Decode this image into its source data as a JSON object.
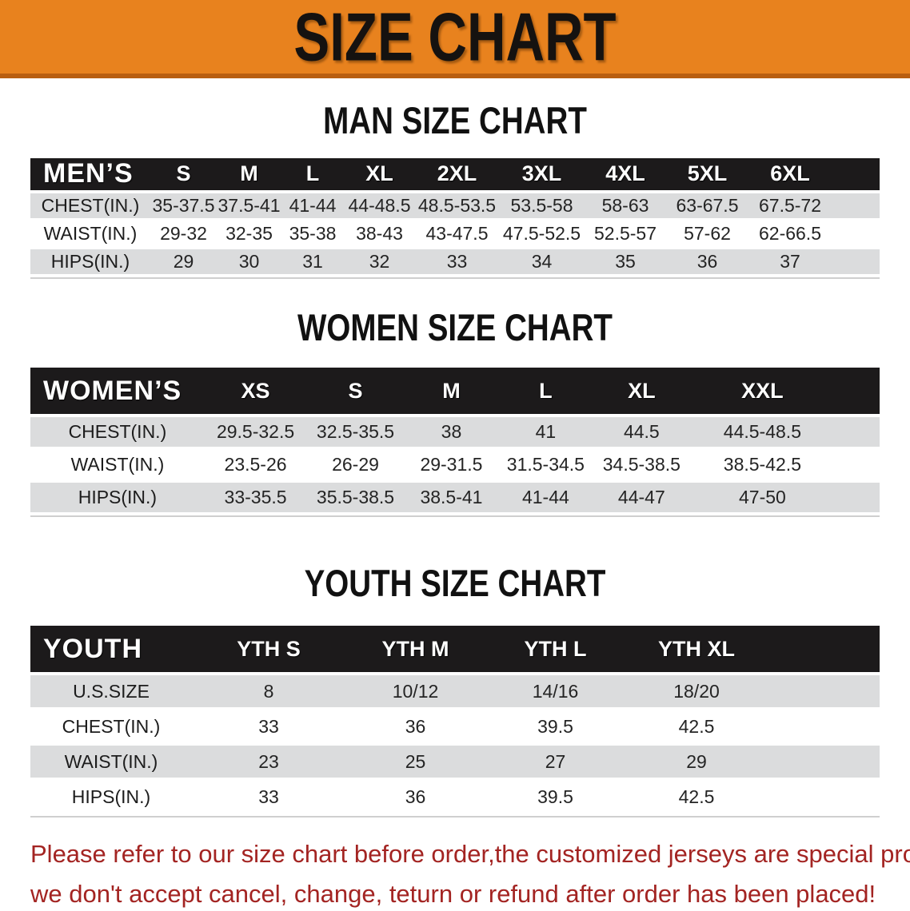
{
  "banner": {
    "title": "SIZE CHART"
  },
  "colors": {
    "banner_bg": "#E8821E",
    "banner_border": "#B95E10",
    "header_bar_bg": "#1C1A1B",
    "header_text": "#FFFFFF",
    "row_alt_bg": "#DBDCDD",
    "row_bg": "#FFFFFF",
    "body_text": "#242424",
    "disclaimer_text": "#A32422"
  },
  "sections": [
    {
      "id": "men",
      "title": "MAN SIZE CHART",
      "group_label": "MEN’S",
      "columns": [
        "S",
        "M",
        "L",
        "XL",
        "2XL",
        "3XL",
        "4XL",
        "5XL",
        "6XL"
      ],
      "rows": [
        {
          "label": "CHEST(IN.)",
          "values": [
            "35-37.5",
            "37.5-41",
            "41-44",
            "44-48.5",
            "48.5-53.5",
            "53.5-58",
            "58-63",
            "63-67.5",
            "67.5-72"
          ]
        },
        {
          "label": "WAIST(IN.)",
          "values": [
            "29-32",
            "32-35",
            "35-38",
            "38-43",
            "43-47.5",
            "47.5-52.5",
            "52.5-57",
            "57-62",
            "62-66.5"
          ]
        },
        {
          "label": "HIPS(IN.)",
          "values": [
            "29",
            "30",
            "31",
            "32",
            "33",
            "34",
            "35",
            "36",
            "37"
          ]
        }
      ]
    },
    {
      "id": "women",
      "title": "WOMEN SIZE CHART",
      "group_label": "WOMEN’S",
      "columns": [
        "XS",
        "S",
        "M",
        "L",
        "XL",
        "XXL"
      ],
      "rows": [
        {
          "label": "CHEST(IN.)",
          "values": [
            "29.5-32.5",
            "32.5-35.5",
            "38",
            "41",
            "44.5",
            "44.5-48.5"
          ]
        },
        {
          "label": "WAIST(IN.)",
          "values": [
            "23.5-26",
            "26-29",
            "29-31.5",
            "31.5-34.5",
            "34.5-38.5",
            "38.5-42.5"
          ]
        },
        {
          "label": "HIPS(IN.)",
          "values": [
            "33-35.5",
            "35.5-38.5",
            "38.5-41",
            "41-44",
            "44-47",
            "47-50"
          ]
        }
      ]
    },
    {
      "id": "youth",
      "title": "YOUTH SIZE CHART",
      "group_label": "YOUTH",
      "columns": [
        "YTH S",
        "YTH M",
        "YTH L",
        "YTH XL"
      ],
      "rows": [
        {
          "label": "U.S.SIZE",
          "values": [
            "8",
            "10/12",
            "14/16",
            "18/20"
          ]
        },
        {
          "label": "CHEST(IN.)",
          "values": [
            "33",
            "36",
            "39.5",
            "42.5"
          ]
        },
        {
          "label": "WAIST(IN.)",
          "values": [
            "23",
            "25",
            "27",
            "29"
          ]
        },
        {
          "label": "HIPS(IN.)",
          "values": [
            "33",
            "36",
            "39.5",
            "42.5"
          ]
        }
      ]
    }
  ],
  "disclaimer": {
    "line1": "Please refer to our size chart before order,the customized jerseys are special products,",
    "line2": "we don't accept cancel, change, teturn or refund after order has been placed!"
  }
}
